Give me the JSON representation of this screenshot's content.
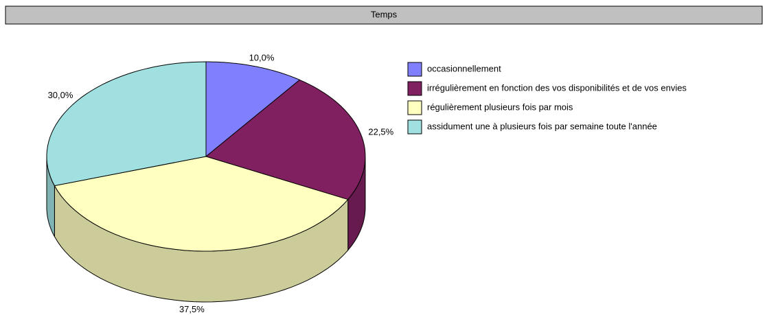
{
  "chart_data": {
    "type": "pie",
    "title": "Temps",
    "categories": [
      "occasionnellement",
      "irrégulièrement en fonction des vos disponibilités et de vos envies",
      "régulièrement plusieurs fois par mois",
      "assidument une à plusieurs fois par semaine toute l'année"
    ],
    "values": [
      10,
      22.5,
      37.5,
      30
    ],
    "value_labels": [
      "10,0%",
      "22,5%",
      "37,5%",
      "30,0%"
    ],
    "colors": [
      "#8080ff",
      "#802060",
      "#ffffc0",
      "#a0e0e0"
    ],
    "legend": "right"
  }
}
